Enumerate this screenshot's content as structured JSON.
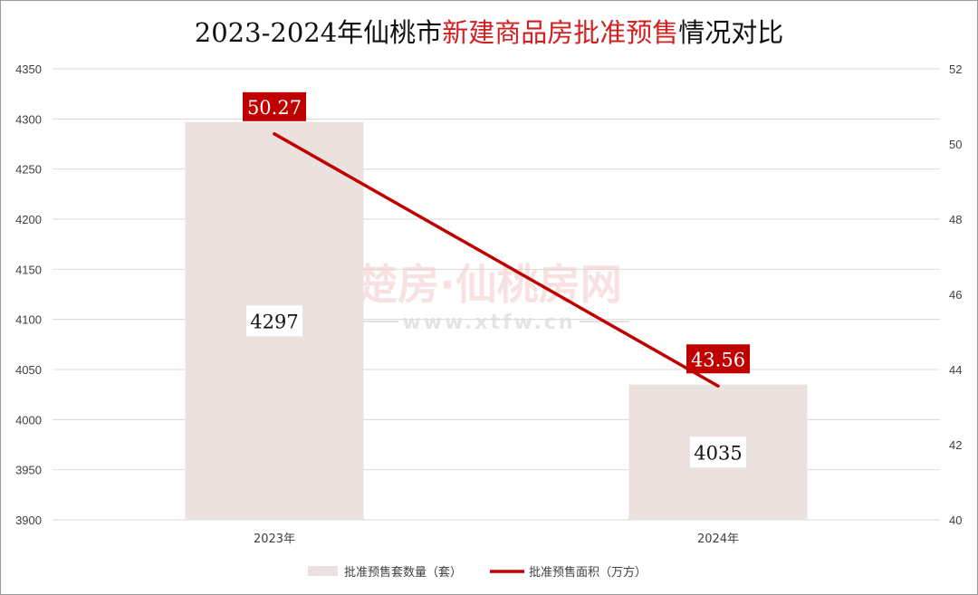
{
  "title": {
    "part1": "2023-2024年仙桃市",
    "highlight": "新建商品房批准预售",
    "part2": "情况对比"
  },
  "watermark": {
    "line1": "楚房·仙桃房网",
    "line2": "www.xtfw.cn"
  },
  "colors": {
    "bar": "#ebe1df",
    "line": "#c00000",
    "title_highlight": "#d21f1f",
    "grid": "#d9d9d9"
  },
  "chart_data": {
    "type": "bar",
    "categories": [
      "2023年",
      "2024年"
    ],
    "series": [
      {
        "name": "批准预售套数量（套）",
        "type": "bar",
        "axis": "left",
        "values": [
          4297,
          4035
        ],
        "labels": [
          "4297",
          "4035"
        ]
      },
      {
        "name": "批准预售面积（万方）",
        "type": "line",
        "axis": "right",
        "values": [
          50.27,
          43.56
        ],
        "labels": [
          "50.27",
          "43.56"
        ]
      }
    ],
    "ylim_left": [
      3900,
      4350
    ],
    "yticks_left": [
      "3900",
      "3950",
      "4000",
      "4050",
      "4100",
      "4150",
      "4200",
      "4250",
      "4300",
      "4350"
    ],
    "ylim_right": [
      40,
      52
    ],
    "yticks_right": [
      "40",
      "42",
      "44",
      "46",
      "48",
      "50",
      "52"
    ],
    "grid": true,
    "legend_position": "bottom"
  }
}
